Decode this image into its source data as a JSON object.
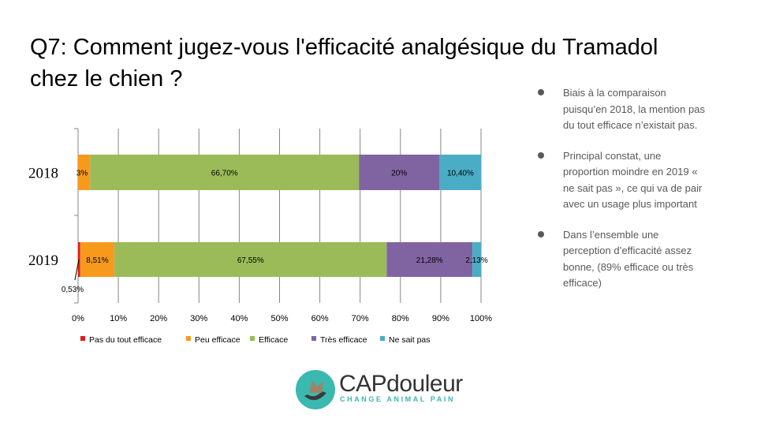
{
  "title": "Q7: Comment jugez-vous l'efficacité analgésique du Tramadol chez le chien ?",
  "bullets": [
    "Biais à la comparaison puisqu’en 2018, la mention pas du tout efficace n’existait pas.",
    "Principal constat, une proportion moindre en 2019 « ne sait pas », ce qui va de pair avec un usage plus important",
    "Dans l’ensemble une perception d’efficacité assez bonne, (89% efficace ou très efficace)"
  ],
  "logo": {
    "brand": "CAPdouleur",
    "tagline": "CHANGE ANIMAL PAIN"
  },
  "chart_data": {
    "type": "bar",
    "orientation": "horizontal",
    "stacked": "100%",
    "categories": [
      "2018",
      "2019"
    ],
    "xlim": [
      0,
      100
    ],
    "xticks": [
      "0%",
      "10%",
      "20%",
      "30%",
      "40%",
      "50%",
      "60%",
      "70%",
      "80%",
      "90%",
      "100%"
    ],
    "grid": true,
    "legend": "bottom",
    "series": [
      {
        "name": "Pas du tout efficace",
        "color": "#e31a1c",
        "values": [
          0,
          0.53
        ],
        "labels": [
          "",
          "0,53%"
        ]
      },
      {
        "name": "Peu efficace",
        "color": "#f79a1c",
        "values": [
          3,
          8.51
        ],
        "labels": [
          "3%",
          "8,51%"
        ]
      },
      {
        "name": "Efficace",
        "color": "#9bbb59",
        "values": [
          66.7,
          67.55
        ],
        "labels": [
          "66,70%",
          "67,55%"
        ]
      },
      {
        "name": "Très efficace",
        "color": "#8064a2",
        "values": [
          20,
          21.28
        ],
        "labels": [
          "20%",
          "21,28%"
        ]
      },
      {
        "name": "Ne sait pas",
        "color": "#4bacc6",
        "values": [
          10.4,
          2.13
        ],
        "labels": [
          "10,40%",
          "2,13%"
        ]
      }
    ]
  }
}
